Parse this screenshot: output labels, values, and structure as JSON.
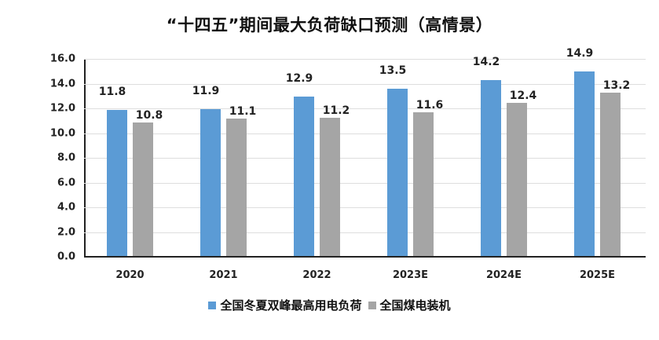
{
  "chart_data": {
    "type": "bar",
    "title": "“十四五”期间最大负荷缺口预测（高情景）",
    "xlabel": "",
    "ylabel": "",
    "categories": [
      "2020",
      "2021",
      "2022",
      "2023E",
      "2024E",
      "2025E"
    ],
    "series": [
      {
        "name": "全国冬夏双峰最高用电负荷",
        "color": "#5b9bd5",
        "values": [
          11.8,
          11.9,
          12.9,
          13.5,
          14.2,
          14.9
        ]
      },
      {
        "name": "全国煤电装机",
        "color": "#a5a5a5",
        "values": [
          10.8,
          11.1,
          11.2,
          11.6,
          12.4,
          13.2
        ]
      }
    ],
    "ylim": [
      0,
      16
    ],
    "yticks": [
      "0.0",
      "2.0",
      "4.0",
      "6.0",
      "8.0",
      "10.0",
      "12.0",
      "14.0",
      "16.0"
    ],
    "grid": true,
    "legend_position": "bottom",
    "data_labels": true
  }
}
